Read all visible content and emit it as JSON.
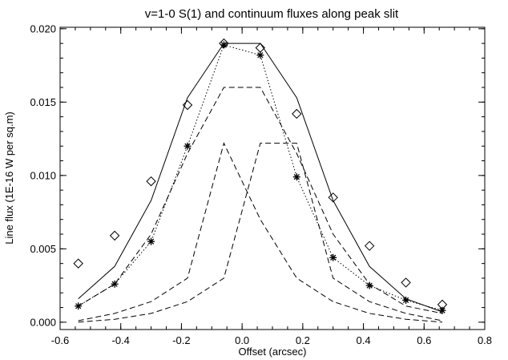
{
  "chart_data": {
    "type": "line",
    "title": "v=1-0 S(1) and continuum fluxes along peak slit",
    "xlabel": "Offset (arcsec)",
    "ylabel": "Line flux (1E-16 W per sq.m)",
    "xlim": [
      -0.6,
      0.8
    ],
    "ylim": [
      -0.0005,
      0.0201
    ],
    "xticks": [
      -0.6,
      -0.4,
      -0.2,
      0.0,
      0.2,
      0.4,
      0.6,
      0.8
    ],
    "xtick_labels": [
      "-0.6",
      "-0.4",
      "-0.2",
      "0.0",
      "0.2",
      "0.4",
      "0.6",
      "0.8"
    ],
    "yticks": [
      0.0,
      0.005,
      0.01,
      0.015,
      0.02
    ],
    "ytick_labels": [
      "0.000",
      "0.005",
      "0.010",
      "0.015",
      "0.020"
    ],
    "grid": false,
    "series": [
      {
        "style": "diamond-markers",
        "x": [
          -0.54,
          -0.42,
          -0.3,
          -0.18,
          -0.06,
          0.06,
          0.18,
          0.3,
          0.42,
          0.54,
          0.66
        ],
        "values": [
          0.004,
          0.0059,
          0.0096,
          0.0148,
          0.019,
          0.0187,
          0.0142,
          0.0085,
          0.0052,
          0.0027,
          0.0012
        ]
      },
      {
        "style": "dotted-line-asterisk-markers",
        "x": [
          -0.54,
          -0.42,
          -0.3,
          -0.18,
          -0.06,
          0.06,
          0.18,
          0.3,
          0.42,
          0.54,
          0.66
        ],
        "values": [
          0.0011,
          0.0026,
          0.0055,
          0.012,
          0.0189,
          0.0182,
          0.0099,
          0.0044,
          0.0025,
          0.0015,
          0.0008
        ]
      },
      {
        "style": "solid",
        "x": [
          -0.54,
          -0.42,
          -0.3,
          -0.18,
          -0.06,
          0.06,
          0.18,
          0.3,
          0.42,
          0.54,
          0.66
        ],
        "values": [
          0.0016,
          0.0038,
          0.0083,
          0.0153,
          0.019,
          0.019,
          0.0153,
          0.0083,
          0.0038,
          0.0016,
          0.0007
        ]
      },
      {
        "style": "dashed",
        "x": [
          -0.54,
          -0.42,
          -0.3,
          -0.18,
          -0.06,
          0.06,
          0.18,
          0.3,
          0.42,
          0.54,
          0.66
        ],
        "values": [
          0.0011,
          0.0026,
          0.006,
          0.0115,
          0.016,
          0.016,
          0.0115,
          0.006,
          0.0026,
          0.0011,
          0.0006
        ]
      },
      {
        "style": "dashed",
        "x": [
          -0.54,
          -0.42,
          -0.3,
          -0.18,
          -0.06,
          0.06,
          0.18,
          0.3,
          0.42,
          0.54,
          0.66
        ],
        "values": [
          0.0001,
          0.0006,
          0.0014,
          0.003,
          0.0122,
          0.007,
          0.003,
          0.0014,
          0.0006,
          0.0002,
          0.0
        ]
      },
      {
        "style": "dashed",
        "x": [
          -0.54,
          -0.42,
          -0.3,
          -0.18,
          -0.06,
          0.06,
          0.18,
          0.3,
          0.42,
          0.54,
          0.66
        ],
        "values": [
          0.0,
          0.0002,
          0.0006,
          0.0014,
          0.003,
          0.0122,
          0.0122,
          0.003,
          0.0014,
          0.0006,
          0.0001
        ]
      }
    ]
  }
}
